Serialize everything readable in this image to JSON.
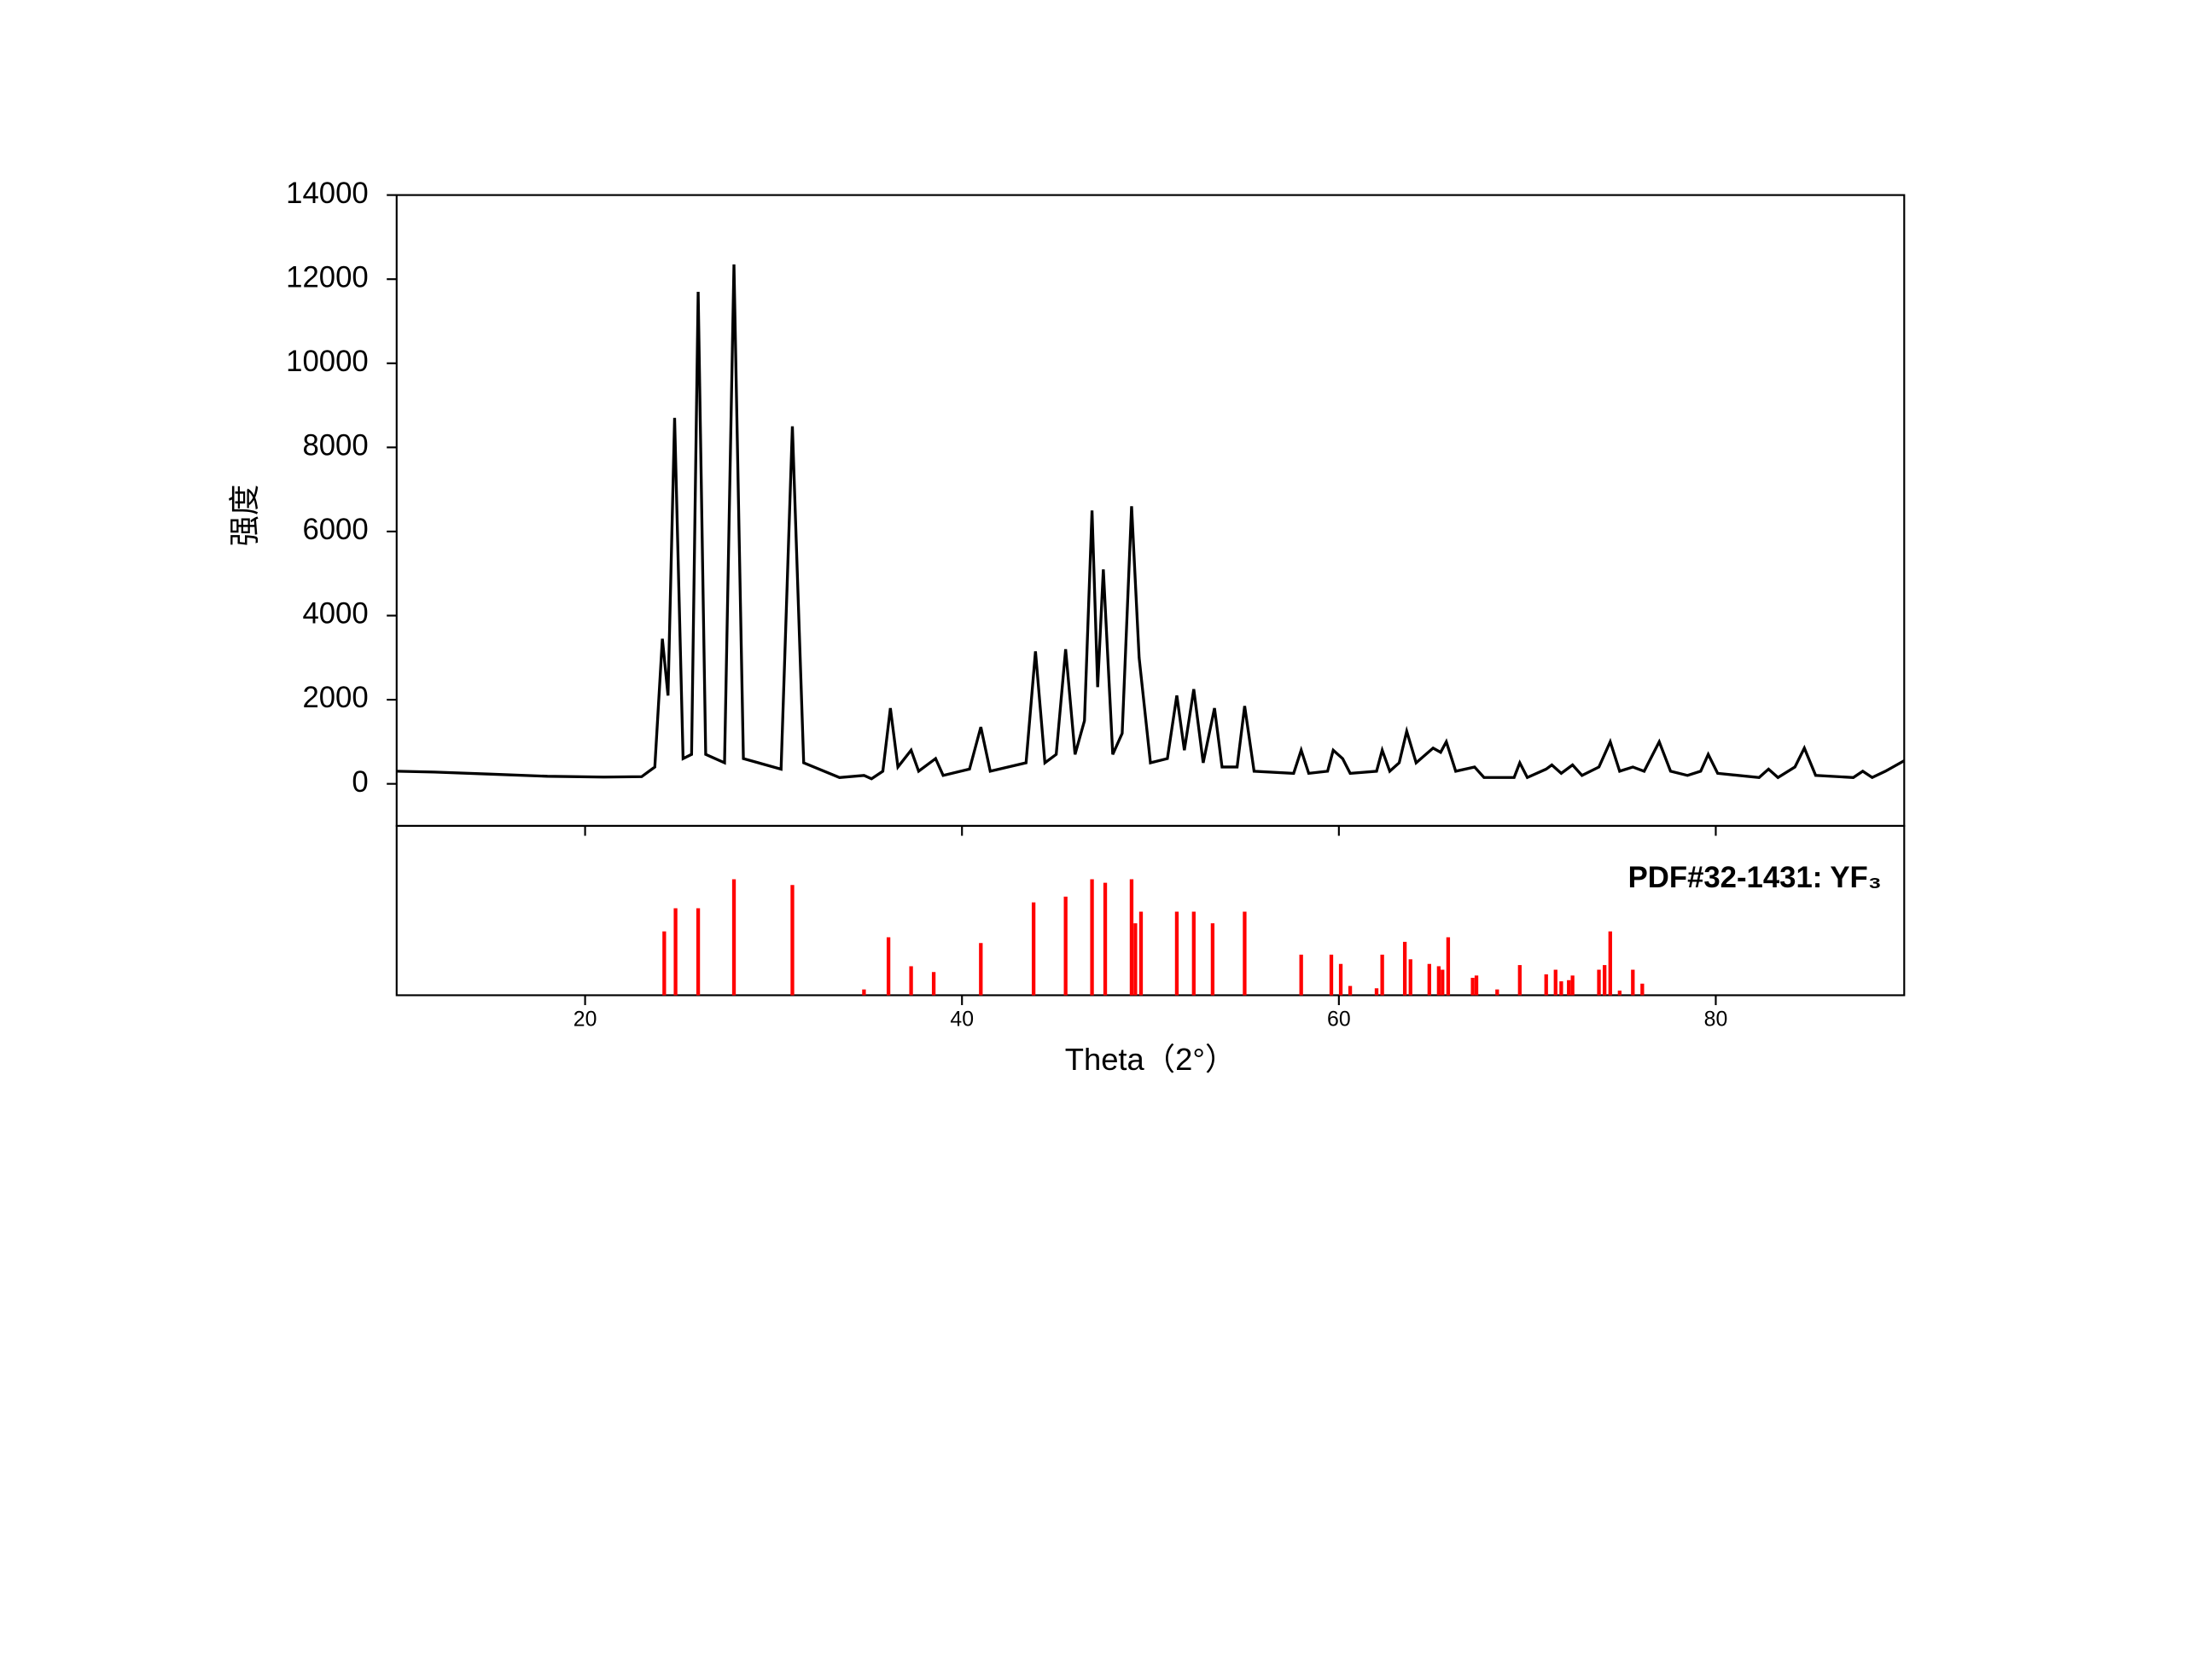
{
  "chart_data": [
    {
      "type": "line",
      "y_label": "强度",
      "color": "#000000",
      "xlim": [
        10,
        90
      ],
      "ylim": [
        -1000,
        14000
      ],
      "yticks": [
        0,
        2000,
        4000,
        6000,
        8000,
        10000,
        12000,
        14000
      ],
      "x": [
        10,
        12,
        15,
        18,
        21,
        23,
        23.7,
        24.1,
        24.4,
        24.75,
        25.2,
        25.65,
        26.0,
        26.4,
        27.4,
        27.9,
        28.4,
        30.4,
        31.0,
        31.6,
        33.5,
        34.8,
        35.2,
        35.8,
        36.2,
        36.6,
        37.3,
        37.7,
        38.6,
        39.0,
        40.4,
        41.0,
        41.5,
        43.4,
        43.9,
        44.4,
        45.0,
        45.5,
        46.0,
        46.5,
        46.9,
        47.2,
        47.5,
        48.0,
        48.5,
        49.0,
        49.4,
        50.0,
        50.9,
        51.4,
        51.8,
        52.3,
        52.8,
        53.4,
        53.8,
        54.6,
        55.0,
        55.5,
        57.6,
        58.0,
        58.4,
        59.4,
        59.7,
        60.2,
        60.6,
        62.0,
        62.3,
        62.7,
        63.2,
        63.6,
        64.1,
        65.0,
        65.4,
        65.7,
        66.2,
        67.2,
        67.7,
        69.3,
        69.6,
        70.0,
        71.0,
        71.3,
        71.8,
        72.4,
        72.9,
        73.8,
        74.4,
        74.9,
        75.6,
        76.2,
        77.0,
        77.6,
        78.5,
        79.2,
        79.6,
        80.1,
        82.3,
        82.8,
        83.3,
        84.2,
        84.7,
        85.3,
        87.3,
        87.8,
        88.3,
        89.0,
        90
      ],
      "values": [
        300,
        280,
        230,
        180,
        160,
        170,
        400,
        3450,
        2100,
        8700,
        600,
        700,
        11700,
        700,
        500,
        12350,
        600,
        350,
        8500,
        500,
        150,
        200,
        120,
        300,
        1800,
        400,
        800,
        300,
        600,
        200,
        350,
        1350,
        300,
        500,
        3150,
        500,
        700,
        3200,
        700,
        1500,
        6500,
        2300,
        5100,
        700,
        1200,
        6600,
        3000,
        500,
        600,
        2100,
        800,
        2250,
        500,
        1800,
        400,
        400,
        1850,
        300,
        250,
        800,
        250,
        300,
        800,
        600,
        250,
        300,
        800,
        300,
        500,
        1250,
        500,
        850,
        750,
        1000,
        300,
        400,
        150,
        150,
        500,
        150,
        350,
        450,
        250,
        450,
        200,
        400,
        1000,
        300,
        400,
        300,
        1000,
        300,
        200,
        300,
        700,
        250,
        150,
        350,
        150,
        400,
        850,
        200,
        150,
        300,
        150,
        300,
        550
      ]
    },
    {
      "type": "bar",
      "annotation": "PDF#32-1431: YF₃",
      "x_label": "Theta（2°）",
      "color": "#ff0000",
      "xlim": [
        10,
        90
      ],
      "ylim": [
        0,
        146
      ],
      "xticks": [
        20,
        40,
        60,
        80
      ],
      "x": [
        24.2,
        24.8,
        26.0,
        27.9,
        31.0,
        34.8,
        36.1,
        37.3,
        38.5,
        41.0,
        43.8,
        45.5,
        46.9,
        47.6,
        49.0,
        49.2,
        49.5,
        51.4,
        52.3,
        53.3,
        55.0,
        58.0,
        59.6,
        60.1,
        60.6,
        62.0,
        62.3,
        63.5,
        63.8,
        64.8,
        65.3,
        65.5,
        65.8,
        67.1,
        67.3,
        68.4,
        69.6,
        71.0,
        71.5,
        71.8,
        72.2,
        72.4,
        73.8,
        74.1,
        74.4,
        74.9,
        75.6,
        76.1
      ],
      "values": [
        55,
        75,
        75,
        100,
        95,
        5,
        50,
        25,
        20,
        45,
        80,
        85,
        100,
        97,
        100,
        62,
        72,
        72,
        72,
        62,
        72,
        35,
        35,
        27,
        8,
        6,
        35,
        46,
        31,
        27,
        25,
        22,
        50,
        15,
        17,
        5,
        26,
        18,
        22,
        12,
        13,
        17,
        22,
        26,
        55,
        4,
        22,
        10
      ]
    }
  ]
}
